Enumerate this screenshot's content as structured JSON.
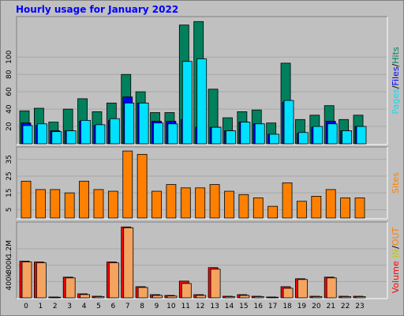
{
  "chart_data": [
    {
      "type": "bar",
      "title": "Hourly usage for January 2022",
      "ylim": [
        0,
        144
      ],
      "yticks": [
        20,
        40,
        60,
        80,
        100
      ],
      "grid": true,
      "legend_separator": "/",
      "series": [
        {
          "name": "Hits",
          "color": "#00805c",
          "values": [
            38,
            41,
            25,
            40,
            52,
            37,
            47,
            80,
            60,
            36,
            36,
            137,
            141,
            63,
            30,
            37,
            39,
            24,
            93,
            28,
            33,
            44,
            28,
            33
          ]
        },
        {
          "name": "Files",
          "color": "#0000ff",
          "values": [
            24,
            21,
            15,
            15,
            26,
            21,
            27,
            54,
            47,
            26,
            26,
            28,
            19,
            19,
            15,
            25,
            23,
            11,
            48,
            12,
            19,
            26,
            15,
            20
          ]
        },
        {
          "name": "Pages",
          "color": "#00e0ff",
          "values": [
            21,
            23,
            14,
            15,
            27,
            22,
            29,
            47,
            47,
            24,
            23,
            95,
            98,
            19,
            15,
            25,
            23,
            11,
            50,
            13,
            20,
            23,
            15,
            20
          ]
        }
      ]
    },
    {
      "type": "bar",
      "ylim": [
        0,
        41
      ],
      "yticks": [
        5,
        15,
        25,
        35
      ],
      "grid": true,
      "series": [
        {
          "name": "Sites",
          "color": "#ff8000",
          "values": [
            22,
            17,
            17,
            15,
            22,
            17,
            16,
            40,
            38,
            16,
            20,
            18,
            18,
            20,
            16,
            14,
            12,
            7,
            21,
            10,
            13,
            17,
            12,
            12
          ]
        }
      ]
    },
    {
      "type": "bar",
      "ylim": [
        0,
        1800000
      ],
      "yticks": [
        {
          "value": 400000,
          "label": "400k"
        },
        {
          "value": 800000,
          "label": "800k"
        },
        {
          "value": 1200000,
          "label": "1.2M"
        }
      ],
      "grid": true,
      "legend_title": "Volume",
      "legend_title_color": "#ff0000",
      "legend_separator": "/",
      "categories": [
        "0",
        "1",
        "2",
        "3",
        "4",
        "5",
        "6",
        "7",
        "8",
        "9",
        "10",
        "11",
        "12",
        "13",
        "14",
        "15",
        "16",
        "17",
        "18",
        "19",
        "20",
        "21",
        "22",
        "23"
      ],
      "series": [
        {
          "name": "IN",
          "color": "#ff0000",
          "label_color": "#c8c800",
          "values": [
            898000,
            878000,
            20000,
            507000,
            98000,
            39000,
            878000,
            1737000,
            273000,
            78000,
            59000,
            410000,
            78000,
            741000,
            39000,
            78000,
            39000,
            20000,
            273000,
            468000,
            39000,
            507000,
            39000,
            39000
          ]
        },
        {
          "name": "OUT",
          "color": "#f4a460",
          "label_color": "#ff8000",
          "values": [
            878000,
            858000,
            15000,
            488000,
            80000,
            30000,
            858000,
            1717000,
            254000,
            60000,
            45000,
            351000,
            60000,
            702000,
            30000,
            60000,
            30000,
            15000,
            234000,
            449000,
            30000,
            488000,
            30000,
            30000
          ]
        }
      ]
    }
  ]
}
